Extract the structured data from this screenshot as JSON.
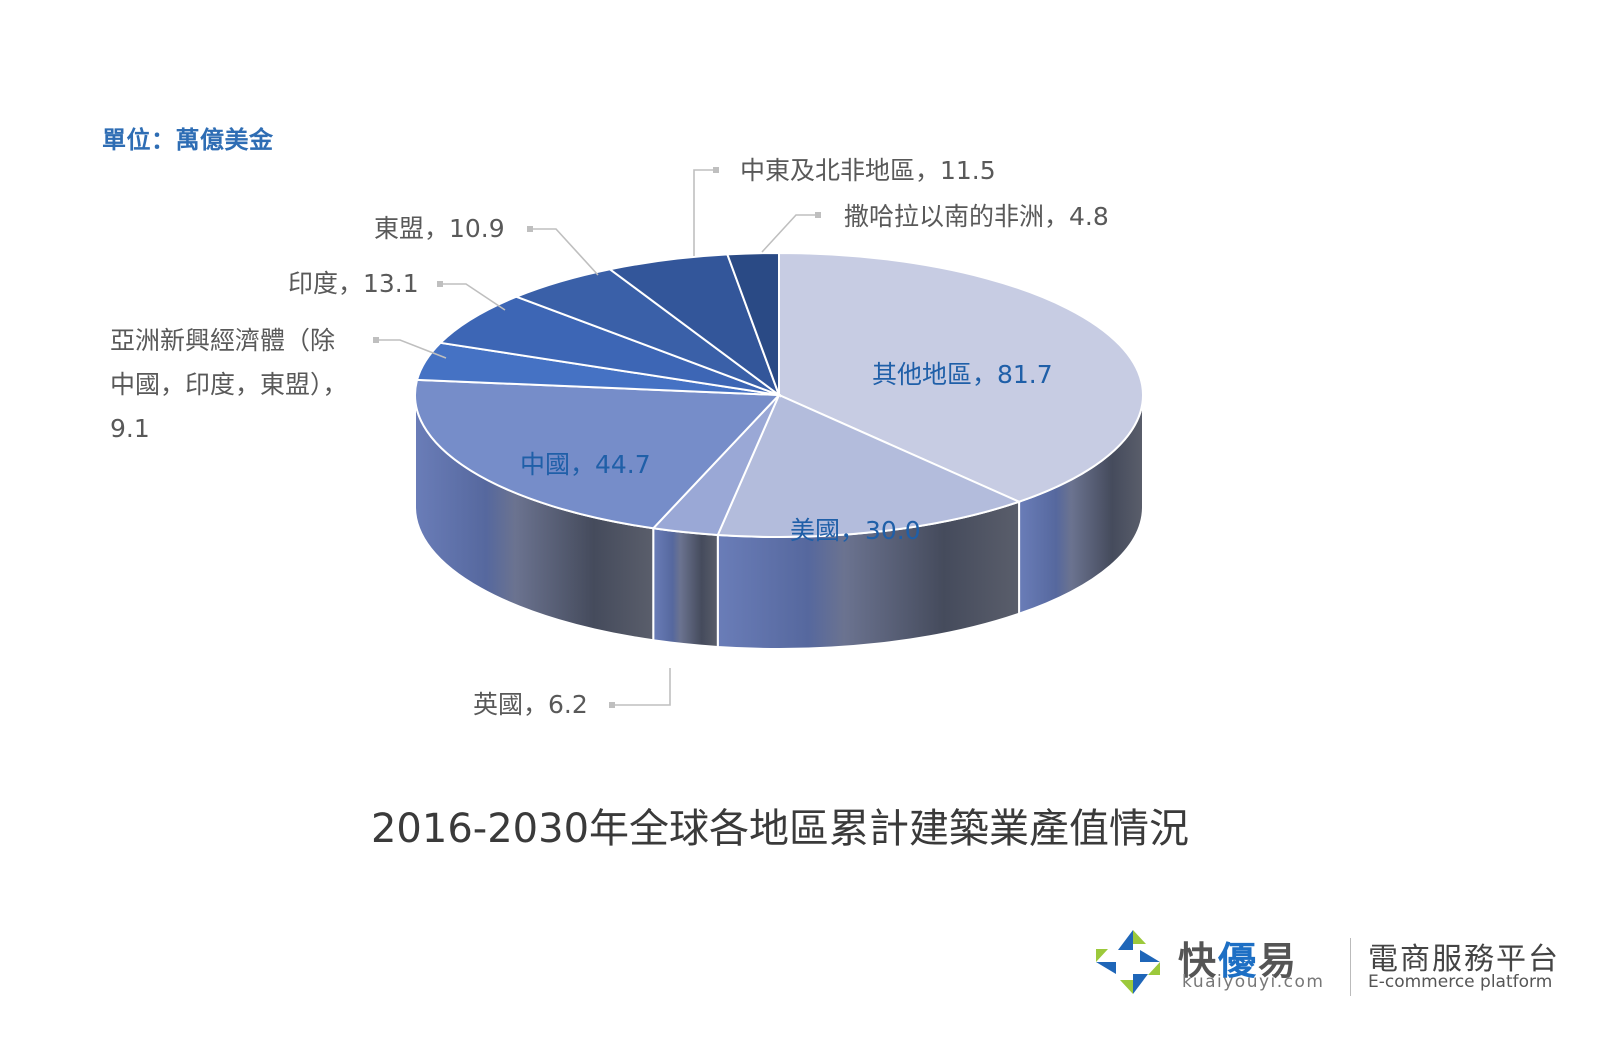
{
  "unit_label": "單位：萬億美金",
  "footer": {
    "brand_a": "快",
    "brand_b": "優",
    "brand_c": "易",
    "brand_url": "kuaiyouyi.com",
    "tagline": "電商服務平台",
    "tagline_en": "E-commerce platform"
  },
  "chart_data": {
    "type": "pie",
    "style": "3d",
    "title": "2016-2030年全球各地區累計建築業產值情況",
    "unit": "萬億美金",
    "categories": [
      "其他地區",
      "美國",
      "英國",
      "中國",
      "亞洲新興經濟體（除中國，印度，東盟）",
      "印度",
      "東盟",
      "中東及北非地區",
      "撒哈拉以南的非洲"
    ],
    "values": [
      81.7,
      30.0,
      6.2,
      44.7,
      9.1,
      13.1,
      10.9,
      11.5,
      4.8
    ],
    "colors": [
      "#c7cce3",
      "#b3bcdc",
      "#9aa8d6",
      "#768dc9",
      "#4572c4",
      "#3d66b5",
      "#3a60a8",
      "#33569a",
      "#2a4a85"
    ],
    "data_labels": [
      "其他地區，81.7",
      "美國，30.0",
      "英國，6.2",
      "中國，44.7",
      "亞洲新興經濟體（除中國，印度，東盟），9.1",
      "印度，13.1",
      "東盟，10.9",
      "中東及北非地區，11.5",
      "撒哈拉以南的非洲，4.8"
    ],
    "label_lines": {
      "asia_line1": "亞洲新興經濟體（除",
      "asia_line2": "中國，印度，東盟），",
      "asia_line3": "9.1"
    },
    "start_angle": "12 o'clock",
    "direction": "clockwise",
    "legend": "none"
  }
}
